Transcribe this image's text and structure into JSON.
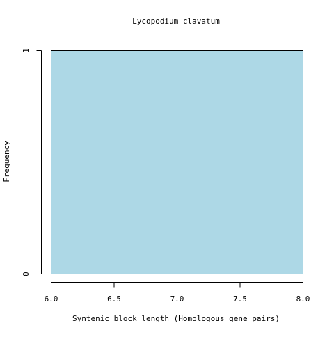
{
  "chart_data": {
    "type": "bar",
    "title": "Lycopodium clavatum",
    "xlabel": "Syntenic block length (Homologous gene pairs)",
    "ylabel": "Frequency",
    "bins": [
      {
        "x0": 6.0,
        "x1": 7.0,
        "value": 1
      },
      {
        "x0": 7.0,
        "x1": 8.0,
        "value": 1
      }
    ],
    "xlim": [
      6.0,
      8.0
    ],
    "ylim": [
      0,
      1
    ],
    "x_ticks": [
      6.0,
      6.5,
      7.0,
      7.5,
      8.0
    ],
    "x_tick_labels": [
      "6.0",
      "6.5",
      "7.0",
      "7.5",
      "8.0"
    ],
    "y_ticks": [
      0,
      1
    ],
    "y_tick_labels": [
      "0",
      "1"
    ],
    "bar_color": "#add8e6",
    "bar_edge_color": "#000000",
    "grid": false,
    "legend": "none"
  }
}
